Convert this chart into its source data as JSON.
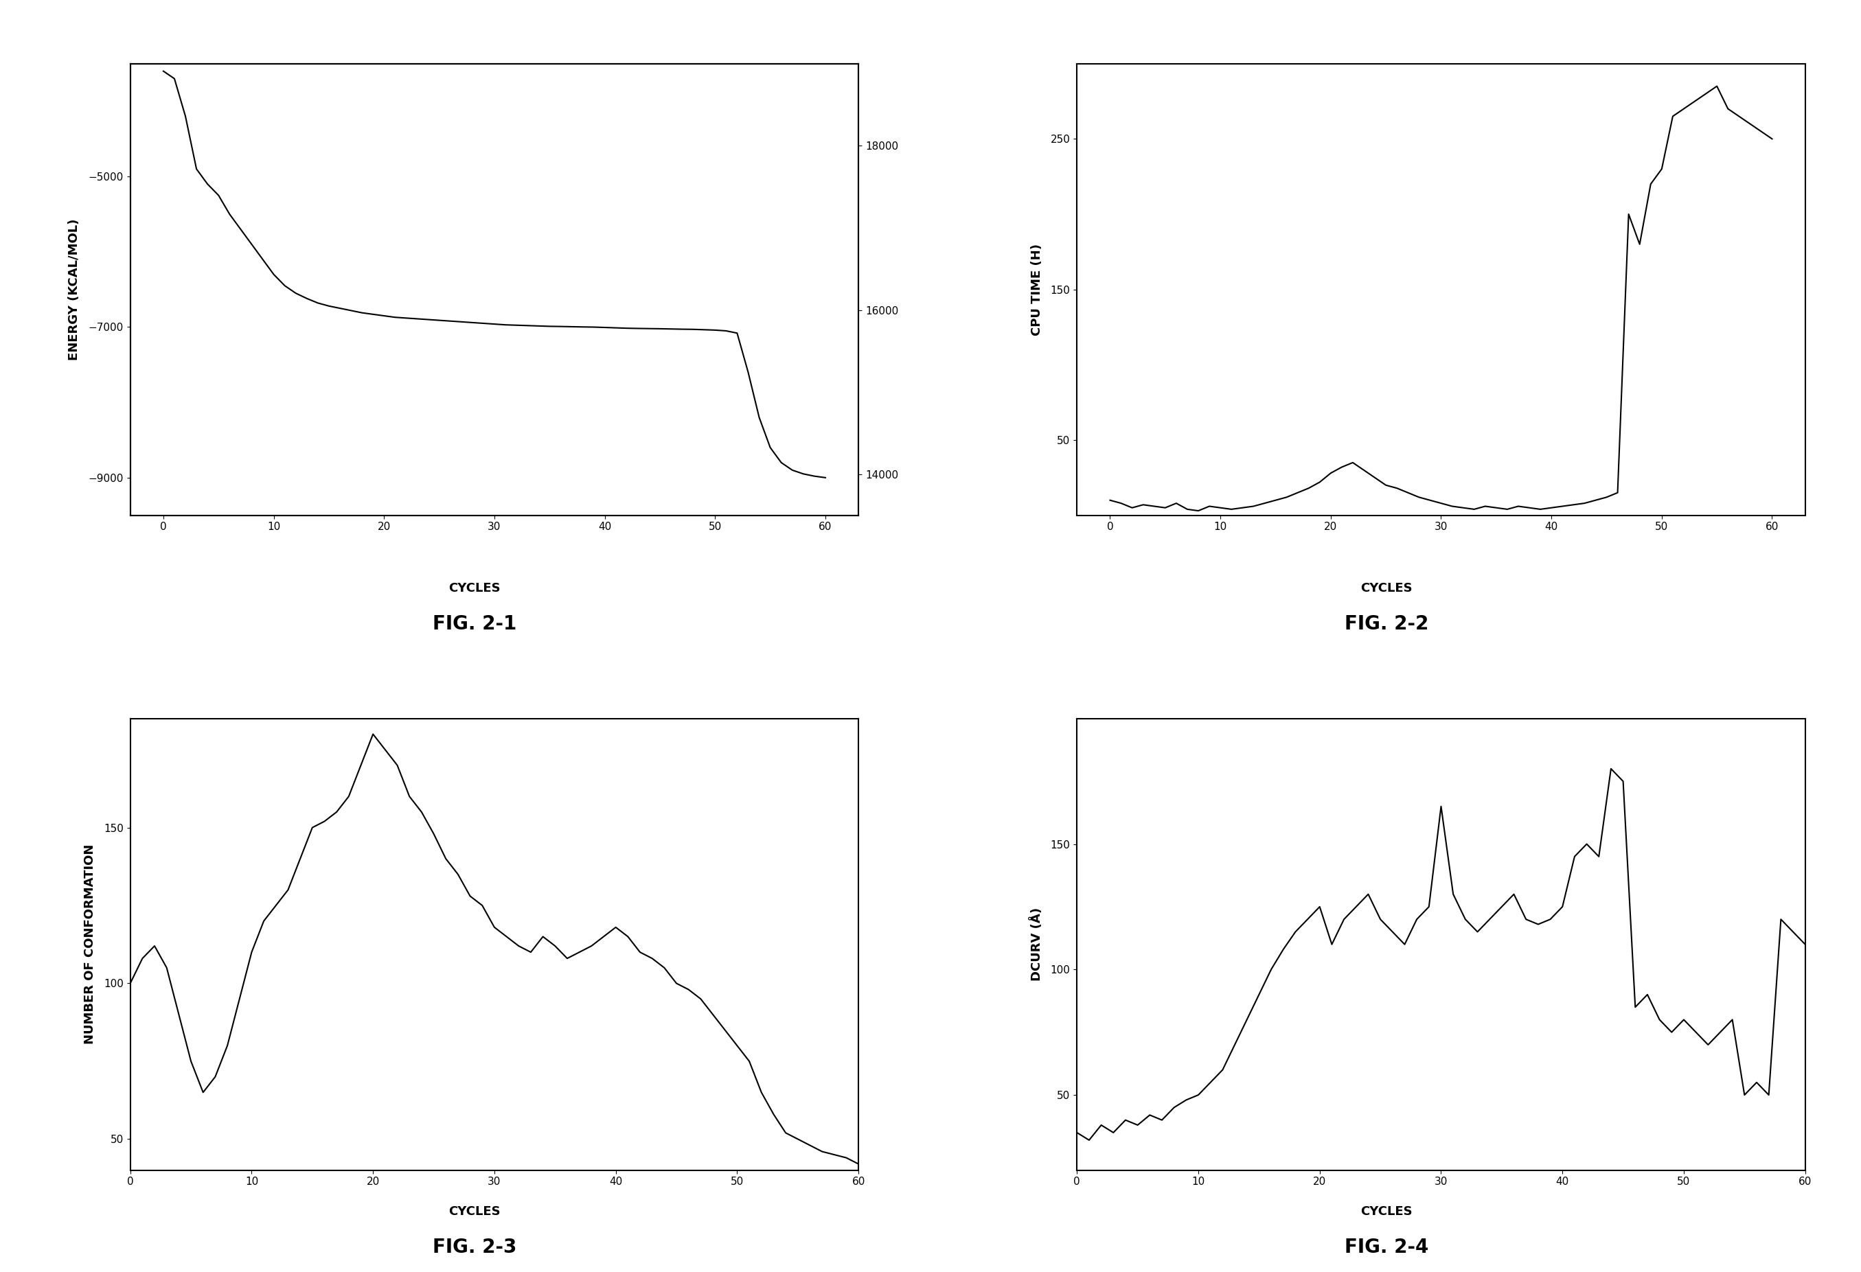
{
  "fig21": {
    "title": "FIG. 2-1",
    "xlabel": "CYCLES",
    "ylabel": "ENERGY (KCAL/MOL)",
    "ylabel2": "",
    "ylim": [
      -9500,
      -3500
    ],
    "ylim2": [
      13500,
      19000
    ],
    "yticks": [
      -9000,
      -7000,
      -5000
    ],
    "yticks2": [
      14000,
      16000,
      18000
    ],
    "x": [
      0,
      1,
      2,
      3,
      4,
      5,
      6,
      7,
      8,
      9,
      10,
      11,
      12,
      13,
      14,
      15,
      16,
      17,
      18,
      19,
      20,
      21,
      22,
      23,
      24,
      25,
      26,
      27,
      28,
      29,
      30,
      31,
      32,
      33,
      34,
      35,
      36,
      37,
      38,
      39,
      40,
      41,
      42,
      43,
      44,
      45,
      46,
      47,
      48,
      49,
      50,
      51,
      52,
      53,
      54,
      55,
      56,
      57,
      58,
      59,
      60
    ],
    "y": [
      -3600,
      -3700,
      -4200,
      -4900,
      -5100,
      -5250,
      -5500,
      -5700,
      -5900,
      -6100,
      -6300,
      -6450,
      -6550,
      -6620,
      -6680,
      -6720,
      -6750,
      -6780,
      -6810,
      -6830,
      -6850,
      -6870,
      -6880,
      -6890,
      -6900,
      -6910,
      -6920,
      -6930,
      -6940,
      -6950,
      -6960,
      -6970,
      -6975,
      -6980,
      -6985,
      -6990,
      -6992,
      -6995,
      -6998,
      -7000,
      -7005,
      -7010,
      -7015,
      -7018,
      -7020,
      -7022,
      -7025,
      -7028,
      -7030,
      -7035,
      -7040,
      -7050,
      -7080,
      -7600,
      -8200,
      -8600,
      -8800,
      -8900,
      -8950,
      -8980,
      -9000
    ]
  },
  "fig22": {
    "title": "FIG. 2-2",
    "xlabel": "CYCLES",
    "ylabel": "CPU TIME (H)",
    "ylim": [
      0,
      300
    ],
    "yticks": [
      50,
      150,
      250
    ],
    "x": [
      0,
      1,
      2,
      3,
      4,
      5,
      6,
      7,
      8,
      9,
      10,
      11,
      12,
      13,
      14,
      15,
      16,
      17,
      18,
      19,
      20,
      21,
      22,
      23,
      24,
      25,
      26,
      27,
      28,
      29,
      30,
      31,
      32,
      33,
      34,
      35,
      36,
      37,
      38,
      39,
      40,
      41,
      42,
      43,
      44,
      45,
      46,
      47,
      48,
      49,
      50,
      51,
      52,
      53,
      54,
      55,
      56,
      57,
      58,
      59,
      60
    ],
    "y": [
      10,
      8,
      5,
      7,
      6,
      5,
      8,
      4,
      3,
      6,
      5,
      4,
      5,
      6,
      8,
      10,
      12,
      15,
      18,
      22,
      28,
      32,
      35,
      30,
      25,
      20,
      18,
      15,
      12,
      10,
      8,
      6,
      5,
      4,
      6,
      5,
      4,
      6,
      5,
      4,
      5,
      6,
      7,
      8,
      10,
      12,
      15,
      200,
      180,
      220,
      230,
      265,
      270,
      275,
      280,
      285,
      270,
      265,
      260,
      255,
      250
    ]
  },
  "fig23": {
    "title": "FIG. 2-3",
    "xlabel": "CYCLES",
    "ylabel": "NUMBER OF CONFORMATION",
    "ylim": [
      40,
      185
    ],
    "yticks": [
      50,
      100,
      150
    ],
    "xlim": [
      0,
      60
    ],
    "xticks": [
      0,
      10,
      20,
      30,
      40,
      50,
      60
    ],
    "x": [
      0,
      1,
      2,
      3,
      4,
      5,
      6,
      7,
      8,
      9,
      10,
      11,
      12,
      13,
      14,
      15,
      16,
      17,
      18,
      19,
      20,
      21,
      22,
      23,
      24,
      25,
      26,
      27,
      28,
      29,
      30,
      31,
      32,
      33,
      34,
      35,
      36,
      37,
      38,
      39,
      40,
      41,
      42,
      43,
      44,
      45,
      46,
      47,
      48,
      49,
      50,
      51,
      52,
      53,
      54,
      55,
      56,
      57,
      58,
      59,
      60
    ],
    "y": [
      100,
      108,
      112,
      105,
      90,
      75,
      65,
      70,
      80,
      95,
      110,
      120,
      125,
      130,
      140,
      150,
      152,
      155,
      160,
      170,
      180,
      175,
      170,
      160,
      155,
      148,
      140,
      135,
      128,
      125,
      118,
      115,
      112,
      110,
      115,
      112,
      108,
      110,
      112,
      115,
      118,
      115,
      110,
      108,
      105,
      100,
      98,
      95,
      90,
      85,
      80,
      75,
      65,
      58,
      52,
      50,
      48,
      46,
      45,
      44,
      42
    ]
  },
  "fig24": {
    "title": "FIG. 2-4",
    "xlabel": "CYCLES",
    "ylabel": "DCURV (Å)",
    "ylim": [
      20,
      200
    ],
    "yticks": [
      50,
      100,
      150
    ],
    "xlim": [
      0,
      60
    ],
    "xticks": [
      0,
      10,
      20,
      30,
      40,
      50,
      60
    ],
    "x": [
      0,
      1,
      2,
      3,
      4,
      5,
      6,
      7,
      8,
      9,
      10,
      11,
      12,
      13,
      14,
      15,
      16,
      17,
      18,
      19,
      20,
      21,
      22,
      23,
      24,
      25,
      26,
      27,
      28,
      29,
      30,
      31,
      32,
      33,
      34,
      35,
      36,
      37,
      38,
      39,
      40,
      41,
      42,
      43,
      44,
      45,
      46,
      47,
      48,
      49,
      50,
      51,
      52,
      53,
      54,
      55,
      56,
      57,
      58,
      59,
      60
    ],
    "y": [
      35,
      32,
      38,
      35,
      40,
      38,
      42,
      40,
      45,
      48,
      50,
      55,
      60,
      70,
      80,
      90,
      100,
      108,
      115,
      120,
      125,
      110,
      120,
      125,
      130,
      120,
      115,
      110,
      120,
      125,
      165,
      130,
      120,
      115,
      120,
      125,
      130,
      120,
      118,
      120,
      125,
      145,
      150,
      145,
      180,
      175,
      85,
      90,
      80,
      75,
      80,
      75,
      70,
      75,
      80,
      50,
      55,
      50,
      120,
      115,
      110
    ]
  },
  "background_color": "#ffffff",
  "line_color": "#000000",
  "font_family": "DejaVu Sans"
}
